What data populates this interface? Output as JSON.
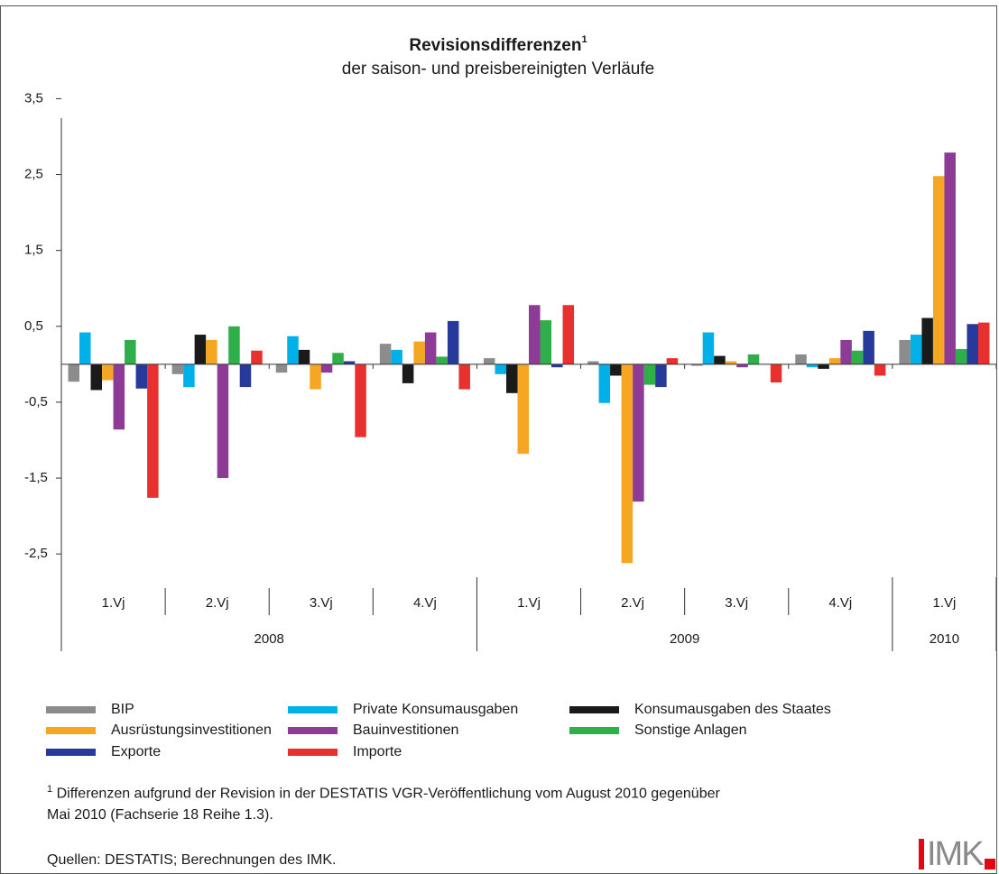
{
  "chart_data": {
    "type": "bar",
    "title": "Revisionsdifferenzen",
    "title_note": "1",
    "subtitle": "der saison- und preisbereinigten Verläufe",
    "year_groups": [
      {
        "label": "2008",
        "categories": [
          "1.Vj",
          "2.Vj",
          "3.Vj",
          "4.Vj"
        ]
      },
      {
        "label": "2009",
        "categories": [
          "1.Vj",
          "2.Vj",
          "3.Vj",
          "4.Vj"
        ]
      },
      {
        "label": "2010",
        "categories": [
          "1.Vj"
        ]
      }
    ],
    "series": [
      {
        "name": "BIP",
        "color": "#8c8c8c",
        "values": [
          -0.23,
          -0.13,
          -0.11,
          0.27,
          0.08,
          0.04,
          -0.02,
          0.13,
          0.32
        ]
      },
      {
        "name": "Private Konsumausgaben",
        "color": "#00b0e8",
        "values": [
          0.42,
          -0.3,
          0.37,
          0.19,
          -0.13,
          -0.51,
          0.42,
          -0.04,
          0.39
        ]
      },
      {
        "name": "Konsumausgaben des Staates",
        "color": "#1a1a1a",
        "values": [
          -0.34,
          0.39,
          0.19,
          -0.25,
          -0.38,
          -0.15,
          0.11,
          -0.06,
          0.61
        ]
      },
      {
        "name": "Ausrüstungsinvestitionen",
        "color": "#f5a623",
        "values": [
          -0.21,
          0.32,
          -0.33,
          0.3,
          -1.18,
          -2.62,
          0.04,
          0.08,
          2.48
        ]
      },
      {
        "name": "Bauinvestitionen",
        "color": "#8e3b97",
        "values": [
          -0.86,
          -1.5,
          -0.11,
          0.42,
          0.78,
          -1.81,
          -0.04,
          0.32,
          2.79
        ]
      },
      {
        "name": "Sonstige Anlagen",
        "color": "#2fae4a",
        "values": [
          0.32,
          0.5,
          0.15,
          0.1,
          0.58,
          -0.27,
          0.13,
          0.18,
          0.2
        ]
      },
      {
        "name": "Exporte",
        "color": "#27399a",
        "values": [
          -0.32,
          -0.3,
          0.04,
          0.57,
          -0.04,
          -0.3,
          0,
          0.44,
          0.53
        ]
      },
      {
        "name": "Importe",
        "color": "#e8312f",
        "values": [
          -1.76,
          0.18,
          -0.96,
          -0.33,
          0.78,
          0.08,
          -0.24,
          -0.15,
          0.55
        ]
      }
    ],
    "ylim": [
      -2.7,
      3.6
    ],
    "yticks": [
      {
        "value": 3.5,
        "label": "3,5"
      },
      {
        "value": 2.5,
        "label": "2,5"
      },
      {
        "value": 1.5,
        "label": "1,5"
      },
      {
        "value": 0.5,
        "label": "0,5"
      },
      {
        "value": -0.5,
        "label": "-0,5"
      },
      {
        "value": -1.5,
        "label": "-1,5"
      },
      {
        "value": -2.5,
        "label": "-2,5"
      }
    ],
    "footnote_mark": "1",
    "footnote": [
      "Differenzen aufgrund der Revision in der DESTATIS VGR-Veröffentlichung vom August 2010 gegenüber",
      "Mai 2010 (Fachserie 18 Reihe 1.3)."
    ],
    "source": "Quellen: DESTATIS; Berechnungen des IMK.",
    "logo": "IMK"
  }
}
